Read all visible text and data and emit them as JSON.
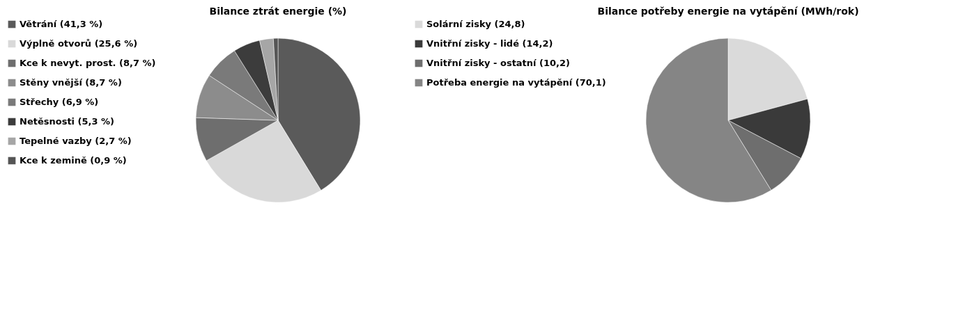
{
  "chart_data": [
    {
      "type": "pie",
      "title": "Bilance ztrát energie (%)",
      "legend": "left",
      "categories": [
        "Větrání (41,3 %)",
        "Výplně otvorů (25,6 %)",
        "Kce k nevyt. prost. (8,7 %)",
        "Stěny vnější (8,7 %)",
        "Střechy (6,9 %)",
        "Netěsnosti (5,3 %)",
        "Tepelné vazby (2,7 %)",
        "Kce k zemině (0,9 %)"
      ],
      "values": [
        41.3,
        25.6,
        8.7,
        8.7,
        6.9,
        5.3,
        2.7,
        0.9
      ],
      "colors": [
        "#5a5a5a",
        "#d9d9d9",
        "#6e6e6e",
        "#8c8c8c",
        "#7a7a7a",
        "#3c3c3c",
        "#a6a6a6",
        "#555555"
      ]
    },
    {
      "type": "pie",
      "title": "Bilance potřeby energie na vytápění (MWh/rok)",
      "legend": "left",
      "categories": [
        "Solární zisky (24,8)",
        "Vnitřní zisky - lidé (14,2)",
        "Vnitřní zisky - ostatní (10,2)",
        "Potřeba energie na vytápění (70,1)"
      ],
      "values": [
        24.8,
        14.2,
        10.2,
        70.1
      ],
      "colors": [
        "#dadada",
        "#3a3a3a",
        "#6e6e6e",
        "#858585"
      ]
    }
  ]
}
